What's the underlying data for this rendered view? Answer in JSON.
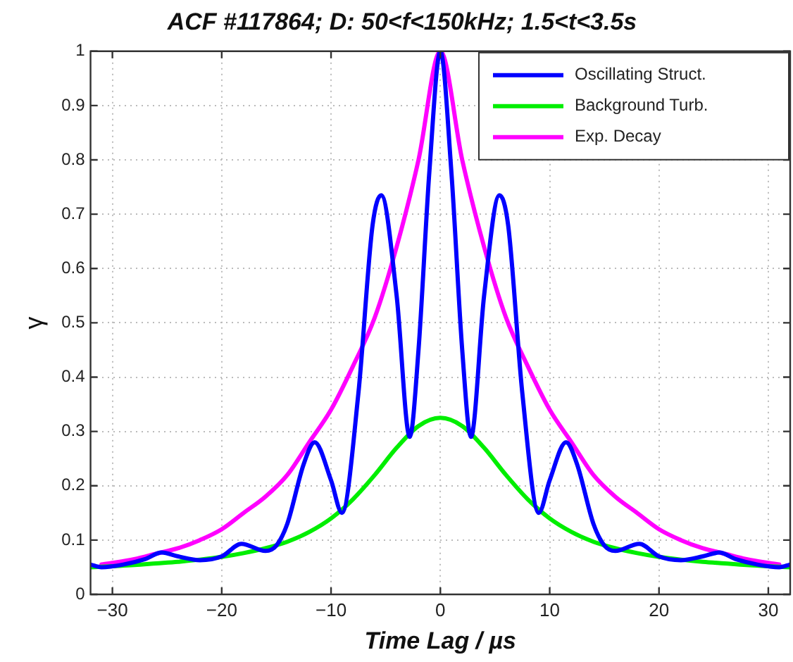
{
  "chart_data": {
    "type": "line",
    "title": "ACF #117864; D: 50<f<150kHz; 1.5<t<3.5s",
    "xlabel": "Time Lag / µs",
    "ylabel": "γ",
    "xlim": [
      -32,
      32
    ],
    "xticks": [
      -30,
      -20,
      -10,
      0,
      10,
      20,
      30
    ],
    "ylim": [
      0,
      1
    ],
    "yticks": [
      0,
      0.1,
      0.2,
      0.3,
      0.4,
      0.5,
      0.6,
      0.7,
      0.8,
      0.9,
      1
    ],
    "grid": true,
    "legend": "top right",
    "marker": "none",
    "line_style": "solid",
    "series": [
      {
        "name": "Oscillating Struct.",
        "color": "#0000ff",
        "x": [
          -32,
          -31,
          -29,
          -27,
          -25.5,
          -24,
          -22,
          -20,
          -18.2,
          -16,
          -15,
          -14,
          -12.5,
          -11.5,
          -10,
          -9,
          -7.5,
          -6.2,
          -5.4,
          -4,
          -2.8,
          -2,
          -1,
          0,
          1,
          2,
          2.8,
          4,
          5.4,
          6.2,
          7.5,
          9,
          10,
          11.5,
          12.5,
          14,
          15,
          16,
          18.2,
          20,
          22,
          24,
          25.5,
          27,
          29,
          31,
          32
        ],
        "values": [
          0.055,
          0.05,
          0.055,
          0.065,
          0.077,
          0.07,
          0.063,
          0.07,
          0.093,
          0.08,
          0.09,
          0.13,
          0.24,
          0.28,
          0.21,
          0.15,
          0.37,
          0.68,
          0.735,
          0.55,
          0.29,
          0.45,
          0.78,
          1.0,
          0.78,
          0.45,
          0.29,
          0.55,
          0.735,
          0.68,
          0.37,
          0.15,
          0.21,
          0.28,
          0.24,
          0.13,
          0.09,
          0.08,
          0.093,
          0.07,
          0.063,
          0.07,
          0.077,
          0.065,
          0.055,
          0.05,
          0.055
        ]
      },
      {
        "name": "Background Turb.",
        "color": "#00ee00",
        "x": [
          -32,
          -30,
          -28,
          -26,
          -24,
          -22,
          -20,
          -18,
          -16,
          -14,
          -12,
          -10,
          -8,
          -6,
          -4,
          -2,
          0,
          2,
          4,
          6,
          8,
          10,
          12,
          14,
          16,
          18,
          20,
          22,
          24,
          26,
          28,
          30,
          32
        ],
        "values": [
          0.05,
          0.052,
          0.054,
          0.057,
          0.06,
          0.064,
          0.069,
          0.076,
          0.085,
          0.097,
          0.115,
          0.14,
          0.175,
          0.22,
          0.27,
          0.31,
          0.325,
          0.31,
          0.27,
          0.22,
          0.175,
          0.14,
          0.115,
          0.097,
          0.085,
          0.076,
          0.069,
          0.064,
          0.06,
          0.057,
          0.054,
          0.052,
          0.05
        ]
      },
      {
        "name": "Exp. Decay",
        "color": "#ff00ff",
        "x": [
          -31,
          -30,
          -28,
          -26,
          -24,
          -22,
          -20,
          -18,
          -16,
          -14,
          -12,
          -10,
          -8,
          -6,
          -4,
          -2,
          0,
          2,
          4,
          6,
          8,
          10,
          12,
          14,
          16,
          18,
          20,
          22,
          24,
          26,
          28,
          30,
          31
        ],
        "values": [
          0.055,
          0.058,
          0.065,
          0.075,
          0.085,
          0.1,
          0.12,
          0.15,
          0.18,
          0.22,
          0.28,
          0.34,
          0.42,
          0.51,
          0.64,
          0.8,
          1.0,
          0.8,
          0.64,
          0.51,
          0.42,
          0.34,
          0.28,
          0.22,
          0.18,
          0.15,
          0.12,
          0.1,
          0.085,
          0.075,
          0.065,
          0.058,
          0.055
        ]
      }
    ]
  }
}
